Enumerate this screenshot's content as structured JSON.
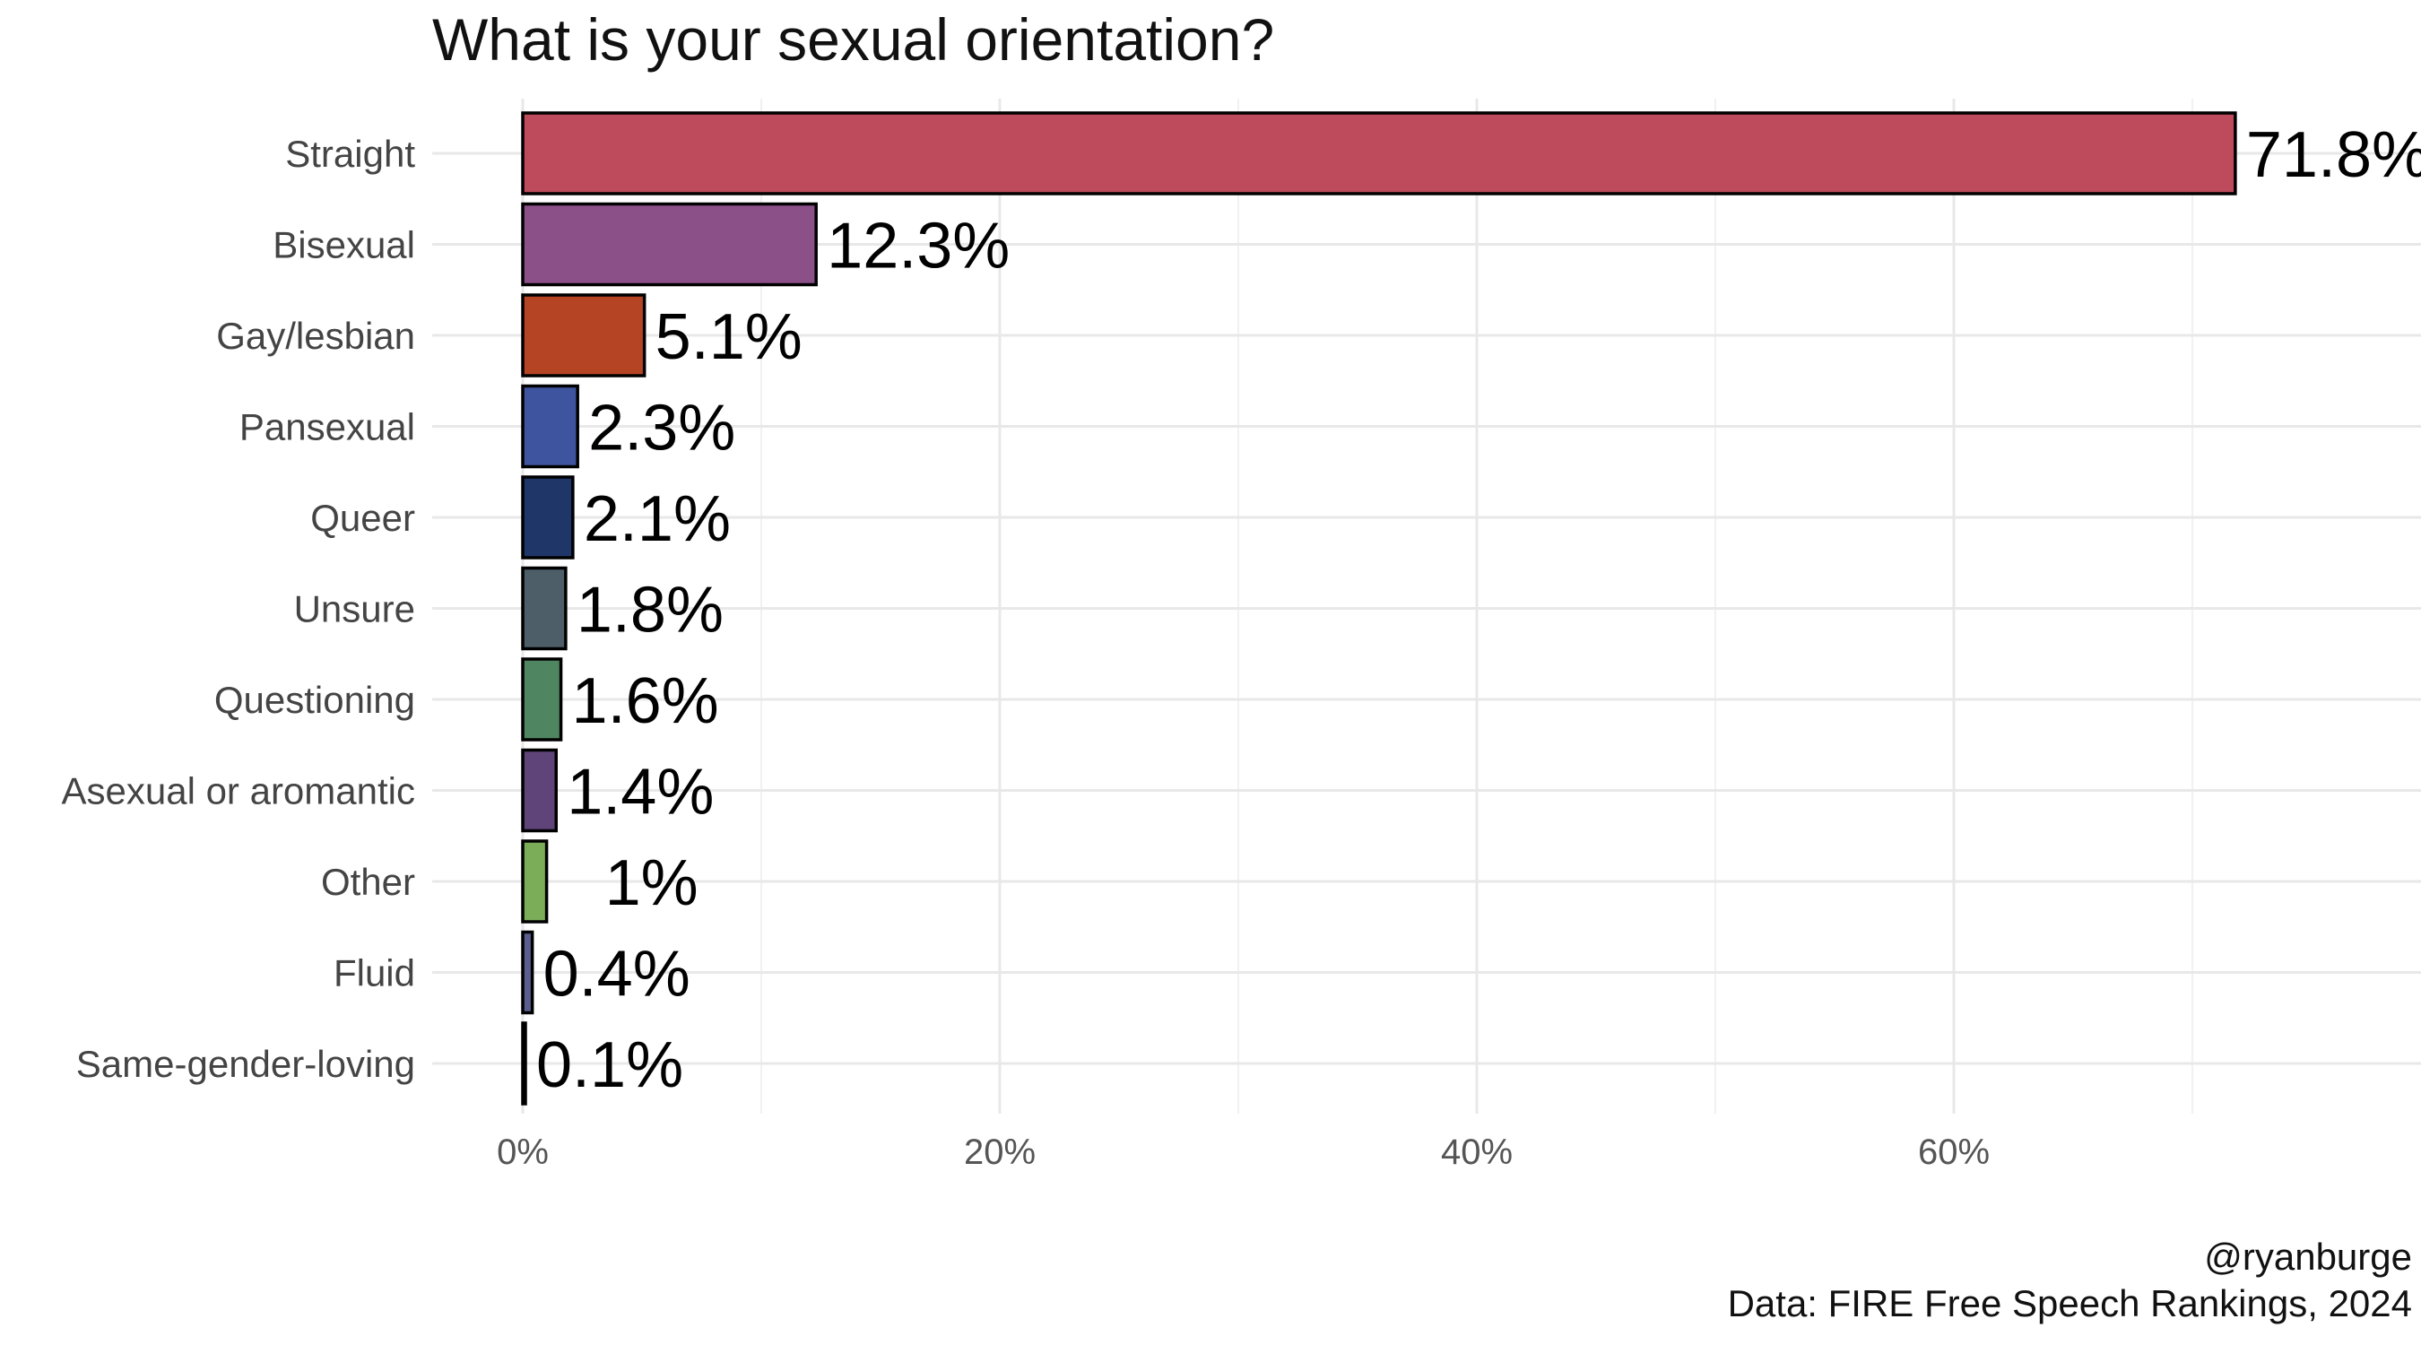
{
  "chart_data": {
    "type": "bar",
    "orientation": "horizontal",
    "title": "What is your sexual orientation?",
    "xlabel": "",
    "ylabel": "",
    "categories": [
      "Straight",
      "Bisexual",
      "Gay/lesbian",
      "Pansexual",
      "Queer",
      "Unsure",
      "Questioning",
      "Asexual or aromantic",
      "Other",
      "Fluid",
      "Same-gender-loving"
    ],
    "values": [
      71.8,
      12.3,
      5.1,
      2.3,
      2.1,
      1.8,
      1.6,
      1.4,
      1.0,
      0.4,
      0.1
    ],
    "value_labels": [
      "71.8%",
      "12.3%",
      "5.1%",
      "2.3%",
      "2.1%",
      "1.8%",
      "1.6%",
      "1.4%",
      "1%",
      "0.4%",
      "0.1%"
    ],
    "colors": [
      "#BD4B5B",
      "#8C5088",
      "#B54425",
      "#3F549E",
      "#1F3768",
      "#4D5E69",
      "#4F8560",
      "#5E4479",
      "#7BAD58",
      "#5A5F8E",
      "#3A3A3A"
    ],
    "xticks": [
      "0%",
      "20%",
      "40%",
      "60%"
    ],
    "xtick_values": [
      0,
      20,
      40,
      60
    ],
    "xlim": [
      -3.7,
      79.5
    ],
    "grid": true,
    "legend": "none"
  },
  "captions": {
    "handle": "@ryanburge",
    "source": "Data: FIRE Free Speech Rankings, 2024"
  }
}
